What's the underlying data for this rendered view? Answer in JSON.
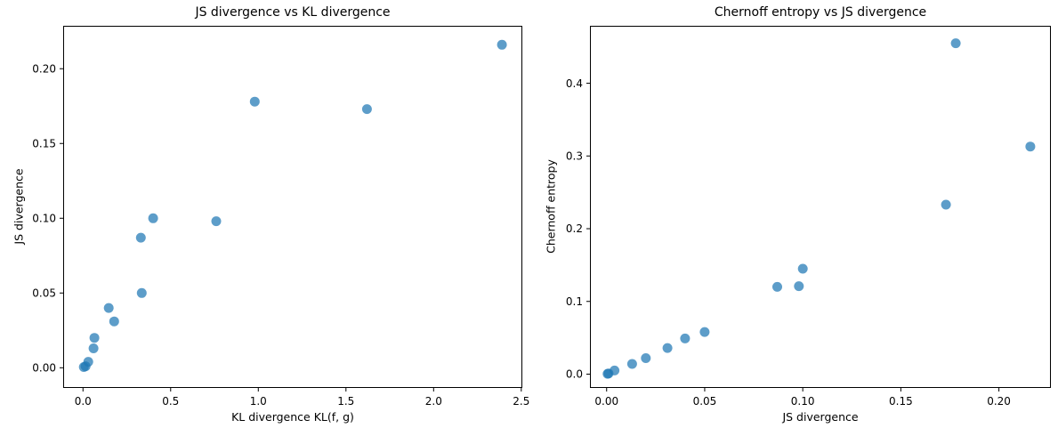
{
  "figure": {
    "background_color": "#ffffff",
    "marker_color": "#1f77b4",
    "marker_opacity": 0.72,
    "marker_radius": 5.5,
    "spine_color": "#000000",
    "text_color": "#000000"
  },
  "points": {
    "kl_divergence": [
      0.005,
      0.015,
      0.03,
      0.06,
      0.065,
      0.178,
      0.147,
      0.335,
      0.33,
      0.76,
      0.4,
      1.62,
      0.98,
      2.39
    ],
    "js_divergence": [
      0.0005,
      0.001,
      0.004,
      0.013,
      0.02,
      0.031,
      0.04,
      0.05,
      0.087,
      0.098,
      0.1,
      0.173,
      0.178,
      0.216
    ],
    "chernoff_entropy": [
      0.0005,
      0.001,
      0.005,
      0.014,
      0.022,
      0.036,
      0.049,
      0.058,
      0.12,
      0.121,
      0.145,
      0.233,
      0.455,
      0.313
    ]
  },
  "chart_data": [
    {
      "type": "scatter",
      "title": "JS divergence vs KL divergence",
      "xlabel": "KL divergence KL(f, g)",
      "ylabel": "JS divergence",
      "x_key": "kl_divergence",
      "y_key": "js_divergence",
      "xlim": [
        -0.113,
        2.506
      ],
      "ylim": [
        -0.0135,
        0.2287
      ],
      "xticks": {
        "values": [
          0.0,
          0.5,
          1.0,
          1.5,
          2.0,
          2.5
        ],
        "labels": [
          "0.0",
          "0.5",
          "1.0",
          "1.5",
          "2.0",
          "2.5"
        ]
      },
      "yticks": {
        "values": [
          0.0,
          0.05,
          0.1,
          0.15,
          0.2
        ],
        "labels": [
          "0.00",
          "0.05",
          "0.10",
          "0.15",
          "0.20"
        ]
      },
      "grid": false,
      "legend": null
    },
    {
      "type": "scatter",
      "title": "Chernoff entropy vs JS divergence",
      "xlabel": "JS divergence",
      "ylabel": "Chernoff entropy",
      "x_key": "js_divergence",
      "y_key": "chernoff_entropy",
      "xlim": [
        -0.0085,
        0.2265
      ],
      "ylim": [
        -0.019,
        0.479
      ],
      "xticks": {
        "values": [
          0.0,
          0.05,
          0.1,
          0.15,
          0.2
        ],
        "labels": [
          "0.00",
          "0.05",
          "0.10",
          "0.15",
          "0.20"
        ]
      },
      "yticks": {
        "values": [
          0.0,
          0.1,
          0.2,
          0.3,
          0.4
        ],
        "labels": [
          "0.0",
          "0.1",
          "0.2",
          "0.3",
          "0.4"
        ]
      },
      "grid": false,
      "legend": null
    }
  ]
}
